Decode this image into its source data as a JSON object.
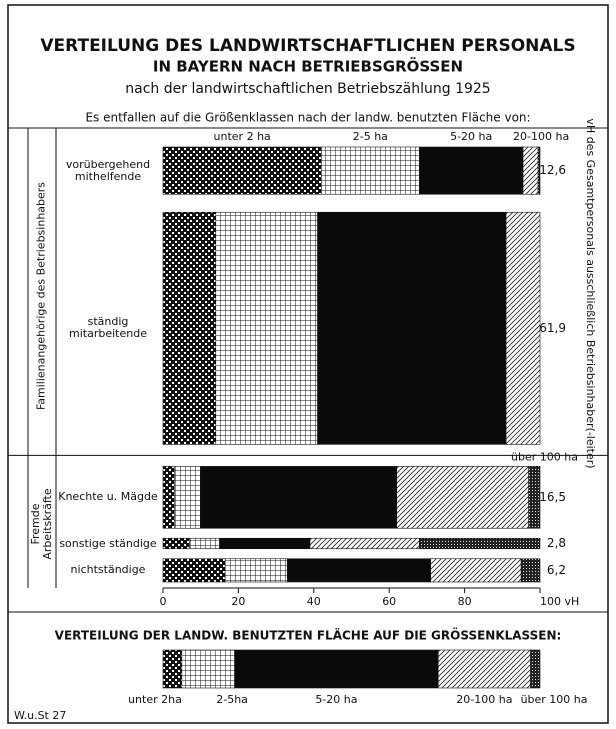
{
  "chart_data": {
    "type": "mekko",
    "title": "VERTEILUNG DES LANDWIRTSCHAFTLICHEN PERSONALS",
    "subtitle": "IN BAYERN NACH BETRIEBSGRÖSSEN",
    "caption": "nach der landwirtschaftlichen Betriebszählung 1925",
    "note": "Es entfallen auf die Größenklassen nach der landw. benutzten Fläche von:",
    "y2_label": "vH des Gesamtpersonals ausschließlich Betriebsinhaber(-leiter)",
    "series": [
      {
        "name": "unter 2 ha",
        "pattern": "checker"
      },
      {
        "name": "2-5 ha",
        "pattern": "grid"
      },
      {
        "name": "5-20 ha",
        "pattern": "solid"
      },
      {
        "name": "20-100 ha",
        "pattern": "hatch"
      },
      {
        "name": "über 100 ha",
        "pattern": "dense"
      }
    ],
    "groups": [
      {
        "name": "Familienangehörige des Betriebsinhabers",
        "rows": [
          {
            "name": "vorübergehend mithelfende",
            "value": 12.6,
            "value_label": "12,6",
            "shares": [
              42,
              26,
              27.5,
              4,
              0.5
            ]
          },
          {
            "name": "ständig mitarbeitende",
            "value": 61.9,
            "value_label": "61,9",
            "shares": [
              14,
              27,
              50,
              9,
              0
            ]
          }
        ]
      },
      {
        "name": "Fremde Arbeitskräfte",
        "rows": [
          {
            "name": "Knechte u. Mägde",
            "value": 16.5,
            "value_label": "16,5",
            "shares": [
              3,
              7,
              52,
              35,
              3
            ]
          },
          {
            "name": "sonstige ständige",
            "value": 2.8,
            "value_label": "2,8",
            "shares": [
              7,
              8,
              24,
              29,
              32
            ]
          },
          {
            "name": "nichtständige",
            "value": 6.2,
            "value_label": "6,2",
            "shares": [
              16.5,
              16.5,
              38,
              24,
              5
            ]
          }
        ]
      }
    ],
    "xlim": [
      0,
      100
    ],
    "xticks": [
      0,
      20,
      40,
      60,
      80,
      {
        "value": 100,
        "label": "100 vH"
      }
    ],
    "area": {
      "title": "VERTEILUNG DER LANDW. BENUTZTEN FLÄCHE AUF DIE GRÖSSENKLASSEN:",
      "labels": [
        "unter 2ha",
        "2-5ha",
        "5-20 ha",
        "20-100 ha",
        "über 100 ha"
      ],
      "values": [
        5,
        14,
        54,
        24.5,
        2.5
      ]
    },
    "source": "W.u.St 27"
  }
}
